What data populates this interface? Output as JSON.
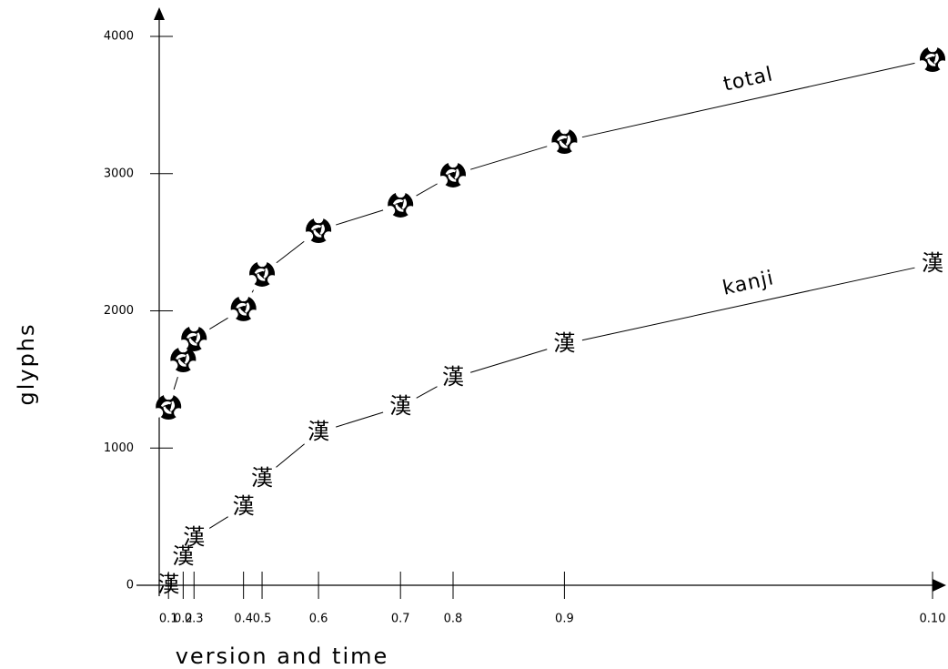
{
  "chart_data": {
    "type": "line",
    "x_label": "version and time",
    "y_label": "glyphs",
    "x": [
      1.2,
      3.1,
      4.5,
      10.9,
      13.3,
      20.6,
      31.2,
      38.0,
      52.4,
      100
    ],
    "xticks": [
      {
        "value": 1.2,
        "label": "0.1"
      },
      {
        "value": 3.1,
        "label": "0.2"
      },
      {
        "value": 4.5,
        "label": "0.3"
      },
      {
        "value": 10.9,
        "label": "0.4"
      },
      {
        "value": 13.3,
        "label": "0.5"
      },
      {
        "value": 20.6,
        "label": "0.6"
      },
      {
        "value": 31.2,
        "label": "0.7"
      },
      {
        "value": 38.0,
        "label": "0.8"
      },
      {
        "value": 52.4,
        "label": "0.9"
      },
      {
        "value": 100,
        "label": "0.10"
      }
    ],
    "xlim": [
      0,
      100
    ],
    "ylim": [
      0,
      4000
    ],
    "yticks": [
      0,
      1000,
      2000,
      3000,
      4000
    ],
    "series": [
      {
        "name": "total",
        "color": "#000000",
        "values": [
          1300,
          1645,
          1798,
          2017,
          2269,
          2587,
          2773,
          2992,
          3237,
          3834
        ]
      },
      {
        "name": "kanji",
        "color": "#000000",
        "marker": "漢",
        "values": [
          0,
          206,
          345,
          570,
          776,
          1114,
          1300,
          1512,
          1758,
          2342
        ]
      }
    ]
  }
}
